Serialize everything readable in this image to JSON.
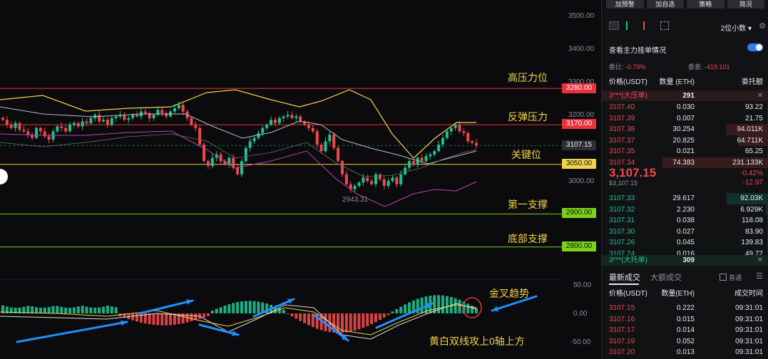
{
  "chart": {
    "y_axis_labels": [
      "3500.00",
      "3400.00",
      "3300.00",
      "3200.00",
      "3100.00",
      "3000.00"
    ],
    "macd_axis_labels": [
      "50.00",
      "0.00",
      "-50.00"
    ],
    "low_marker": "2943.31",
    "levels": [
      {
        "label": "高压力位",
        "price": "3280.00",
        "color": "#e8323c",
        "text_color": "#ffffff"
      },
      {
        "label": "反弹压力",
        "price": "3170.00",
        "color": "#e8323c",
        "text_color": "#ffffff"
      },
      {
        "label": "关键位",
        "price": "3050.00",
        "color": "#f3d24a",
        "text_color": "#111111"
      },
      {
        "label": "第一支撑",
        "price": "2900.00",
        "color": "#7ad21c",
        "text_color": "#111111"
      },
      {
        "label": "底部支撑",
        "price": "2800.00",
        "color": "#7ad21c",
        "text_color": "#111111"
      }
    ],
    "current_price_tag": "3107.15",
    "annotations": {
      "golden_cross": "金叉趋势",
      "macd_note": "黄白双线攻上0轴上方"
    },
    "colors": {
      "up": "#1fc18e",
      "down": "#f0484a",
      "yellow": "#f3d24a",
      "annotation_arrow": "#1e90ff"
    }
  },
  "sidebar": {
    "top_buttons": [
      "加预警",
      "加自选",
      "策略",
      "简况"
    ],
    "precision": "2位小数",
    "main_force_label": "查看主力挂单情况",
    "ratio_label": "委比:",
    "ratio_value": "-0.79%",
    "diff_label": "委差:",
    "diff_value": "-419.101",
    "columns": {
      "price": "价格(USDT)",
      "qty": "数量 (ETH)",
      "total": "委托额"
    },
    "big_sell": {
      "label": "3***(大压单)",
      "value": "291"
    },
    "asks": [
      {
        "price": "3107.40",
        "qty": "0.030",
        "total": "93.22"
      },
      {
        "price": "3107.39",
        "qty": "0.007",
        "total": "21.75"
      },
      {
        "price": "3107.38",
        "qty": "30.254",
        "total": "94.011K"
      },
      {
        "price": "3107.37",
        "qty": "20.825",
        "total": "64.711K"
      },
      {
        "price": "3107.35",
        "qty": "0.021",
        "total": "65.25"
      },
      {
        "price": "3107.34",
        "qty": "74.383",
        "total": "231.133K"
      }
    ],
    "last_price": "3,107.15",
    "last_price_usd": "$3,107.15",
    "change_pct": "-0.42%",
    "change_abs": "-12.97",
    "bids": [
      {
        "price": "3107.33",
        "qty": "29.617",
        "total": "92.03K"
      },
      {
        "price": "3107.32",
        "qty": "2.230",
        "total": "6.929K"
      },
      {
        "price": "3107.31",
        "qty": "0.038",
        "total": "118.08"
      },
      {
        "price": "3107.30",
        "qty": "0.027",
        "total": "83.90"
      },
      {
        "price": "3107.26",
        "qty": "0.045",
        "total": "139.83"
      },
      {
        "price": "3107.24",
        "qty": "0.016",
        "total": "49.72"
      }
    ],
    "big_buy": {
      "label": "3***(大托单)",
      "value": "309"
    },
    "trade_tabs": [
      "最新成交",
      "大额成交"
    ],
    "normal_label": "普通",
    "trade_columns": {
      "price": "价格(USDT)",
      "qty": "数量(ETH)",
      "time": "成交时间"
    },
    "trades": [
      {
        "price": "3107.15",
        "qty": "0.222",
        "time": "09:31:01"
      },
      {
        "price": "3107.16",
        "qty": "0.015",
        "time": "09:31:01"
      },
      {
        "price": "3107.17",
        "qty": "0.014",
        "time": "09:31:01"
      },
      {
        "price": "3107.19",
        "qty": "0.052",
        "time": "09:31:01"
      },
      {
        "price": "3107.20",
        "qty": "0.013",
        "time": "09:31:01"
      }
    ]
  }
}
